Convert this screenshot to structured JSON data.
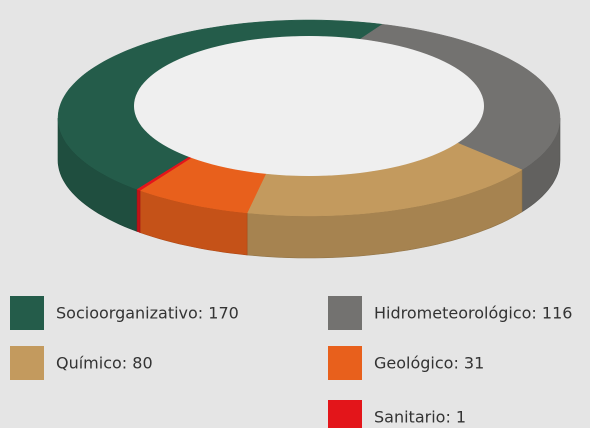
{
  "chart_data": {
    "type": "pie",
    "categories": [
      "Socioorganizativo: 170",
      "Hidrometeorológico: 116",
      "Químico: 80",
      "Geológico: 31",
      "Sanitario: 1"
    ],
    "values": [
      170,
      116,
      80,
      31,
      1
    ],
    "colors": [
      "#245c4a",
      "#737270",
      "#c39a5e",
      "#e8601c",
      "#e3151a"
    ]
  }
}
